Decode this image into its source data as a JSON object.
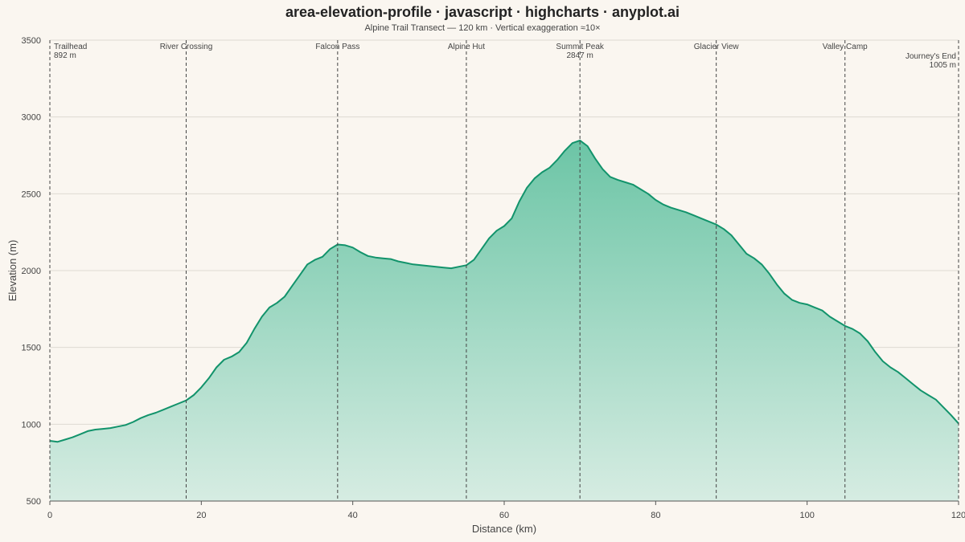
{
  "title": "area-elevation-profile · javascript · highcharts · anyplot.ai",
  "subtitle": "Alpine Trail Transect — 120 km · Vertical exaggeration ≈10×",
  "colors": {
    "line": "#12936b",
    "fill_top": "#6cc5a6",
    "fill_bottom": "#d6ece2",
    "background": "#faf6f0"
  },
  "chart_data": {
    "type": "area",
    "title": "area-elevation-profile · javascript · highcharts · anyplot.ai",
    "subtitle": "Alpine Trail Transect — 120 km · Vertical exaggeration ≈10×",
    "xlabel": "Distance (km)",
    "ylabel": "Elevation (m)",
    "xlim": [
      0,
      120
    ],
    "ylim": [
      500,
      3500
    ],
    "xticks": [
      0,
      20,
      40,
      60,
      80,
      100,
      120
    ],
    "yticks": [
      500,
      1000,
      1500,
      2000,
      2500,
      3000,
      3500
    ],
    "grid": true,
    "series": [
      {
        "x": [
          0,
          1,
          2,
          3,
          4,
          5,
          6,
          7,
          8,
          9,
          10,
          11,
          12,
          13,
          14,
          15,
          16,
          17,
          18,
          19,
          20,
          21,
          22,
          23,
          24,
          25,
          26,
          27,
          28,
          29,
          30,
          31,
          32,
          33,
          34,
          35,
          36,
          37,
          38,
          39,
          40,
          41,
          42,
          43,
          44,
          45,
          46,
          47,
          48,
          49,
          50,
          51,
          52,
          53,
          54,
          55,
          56,
          57,
          58,
          59,
          60,
          61,
          62,
          63,
          64,
          65,
          66,
          67,
          68,
          69,
          70,
          71,
          72,
          73,
          74,
          75,
          76,
          77,
          78,
          79,
          80,
          81,
          82,
          83,
          84,
          85,
          86,
          87,
          88,
          89,
          90,
          91,
          92,
          93,
          94,
          95,
          96,
          97,
          98,
          99,
          100,
          101,
          102,
          103,
          104,
          105,
          106,
          107,
          108,
          109,
          110,
          111,
          112,
          113,
          114,
          115,
          116,
          117,
          118,
          119,
          120
        ],
        "y": [
          892,
          885,
          900,
          915,
          935,
          955,
          965,
          970,
          975,
          985,
          995,
          1015,
          1040,
          1060,
          1075,
          1095,
          1115,
          1135,
          1155,
          1190,
          1240,
          1300,
          1370,
          1420,
          1440,
          1470,
          1530,
          1620,
          1700,
          1760,
          1790,
          1830,
          1900,
          1970,
          2040,
          2070,
          2090,
          2140,
          2170,
          2165,
          2150,
          2120,
          2095,
          2085,
          2080,
          2075,
          2060,
          2050,
          2040,
          2035,
          2030,
          2025,
          2020,
          2015,
          2025,
          2035,
          2070,
          2140,
          2210,
          2260,
          2290,
          2340,
          2450,
          2540,
          2600,
          2640,
          2670,
          2720,
          2780,
          2830,
          2847,
          2810,
          2730,
          2660,
          2610,
          2590,
          2575,
          2560,
          2530,
          2500,
          2460,
          2430,
          2410,
          2395,
          2380,
          2360,
          2340,
          2320,
          2300,
          2270,
          2230,
          2170,
          2110,
          2080,
          2040,
          1980,
          1910,
          1850,
          1810,
          1790,
          1780,
          1760,
          1740,
          1700,
          1670,
          1640,
          1620,
          1590,
          1540,
          1470,
          1410,
          1370,
          1340,
          1300,
          1260,
          1220,
          1190,
          1160,
          1110,
          1060,
          1005
        ]
      }
    ],
    "annotations": [
      {
        "x": 0,
        "label": "Trailhead",
        "sub": "892 m"
      },
      {
        "x": 18,
        "label": "River Crossing",
        "sub": ""
      },
      {
        "x": 38,
        "label": "Falcon Pass",
        "sub": ""
      },
      {
        "x": 55,
        "label": "Alpine Hut",
        "sub": ""
      },
      {
        "x": 70,
        "label": "Summit Peak",
        "sub": "2847 m"
      },
      {
        "x": 88,
        "label": "Glacier View",
        "sub": ""
      },
      {
        "x": 105,
        "label": "Valley Camp",
        "sub": ""
      },
      {
        "x": 120,
        "label": "Journey's End",
        "sub": "1005 m"
      }
    ]
  }
}
